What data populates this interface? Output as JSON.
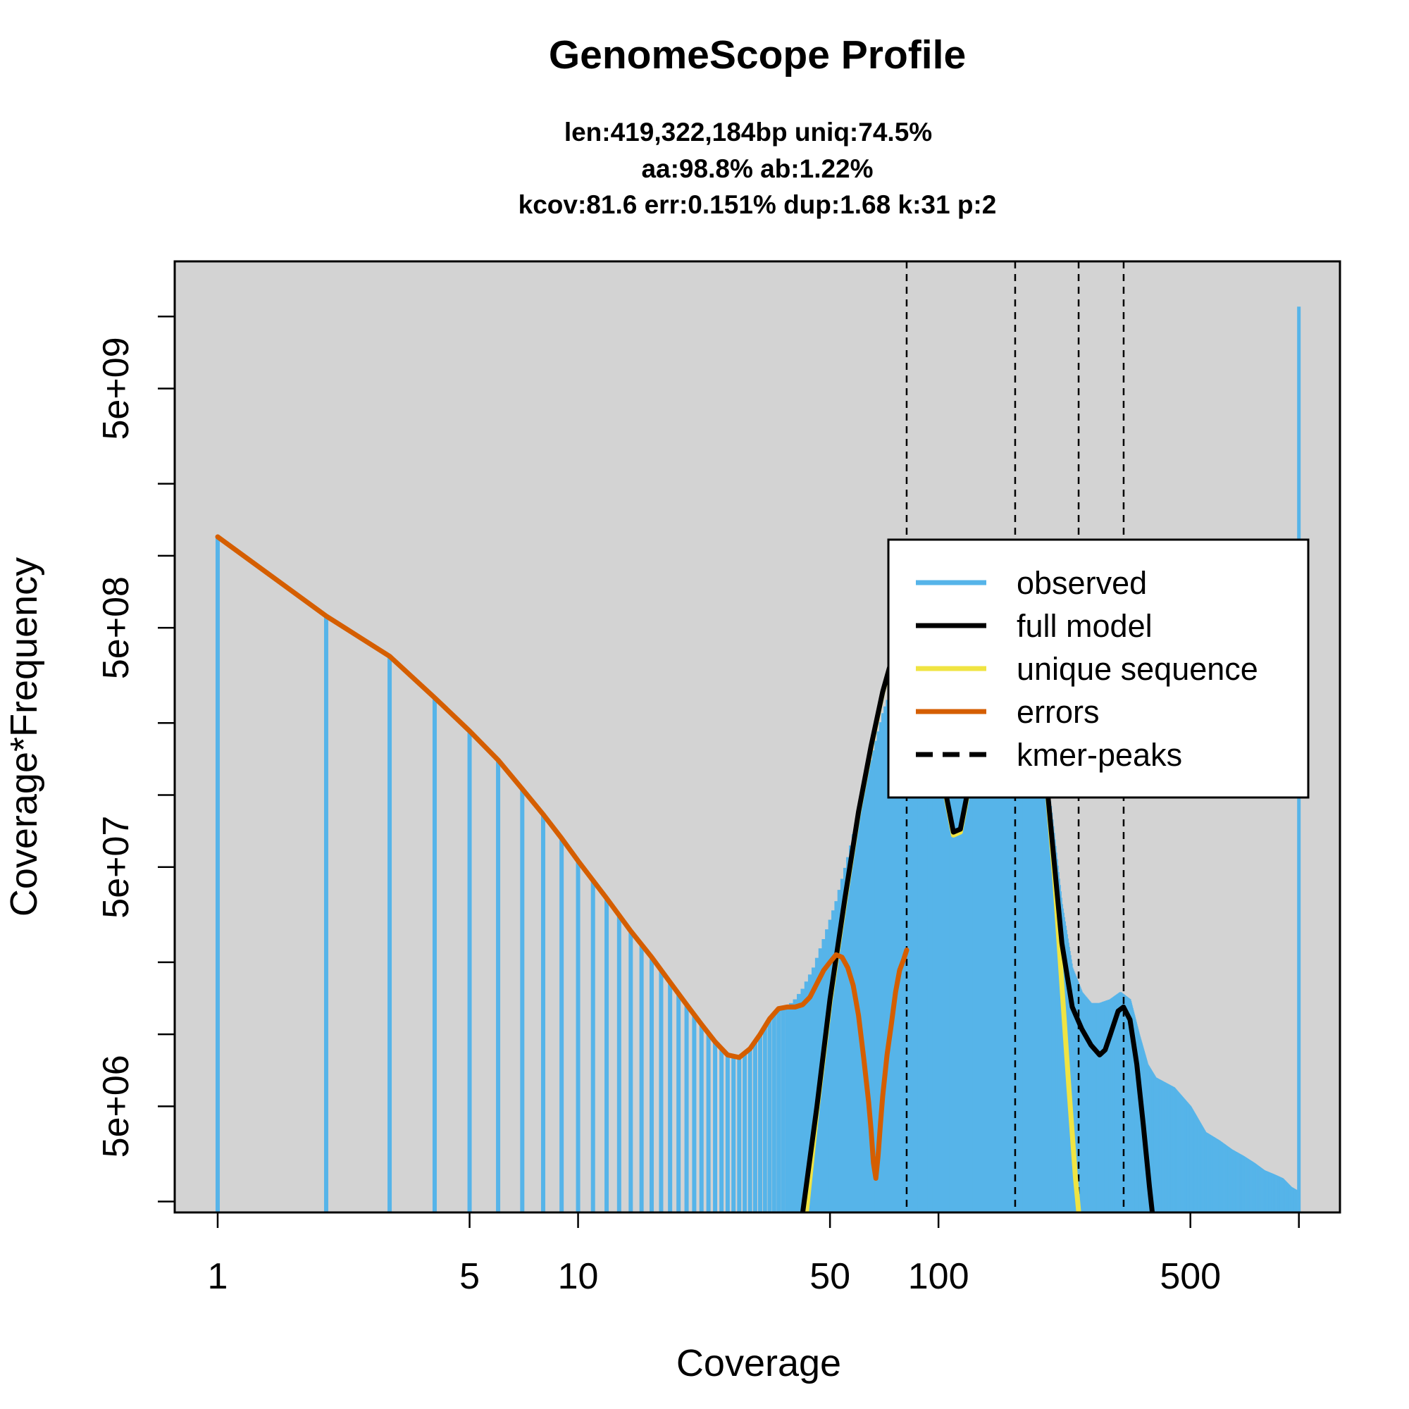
{
  "chart_data": {
    "type": "bar",
    "title": "GenomeScope Profile",
    "subtitle_lines": [
      "len:419,322,184bp uniq:74.5%",
      "aa:98.8% ab:1.22%",
      "kcov:81.6 err:0.151%  dup:1.68  k:31 p:2"
    ],
    "xlabel": "Coverage",
    "ylabel": "Coverage*Frequency",
    "x_scale": "log",
    "y_scale": "log",
    "xlim": [
      0.76,
      1300
    ],
    "ylim": [
      1800000,
      17000000000
    ],
    "x_ticks": [
      1,
      5,
      10,
      50,
      100,
      500
    ],
    "x_tick_labels": [
      "1",
      "5",
      "10",
      "50",
      "100",
      "500"
    ],
    "y_ticks": [
      1000000,
      2000000,
      5000000,
      10000000,
      20000000,
      50000000,
      100000000,
      200000000,
      500000000,
      1000000000,
      2000000000,
      5000000000,
      10000000000
    ],
    "y_tick_labels": [
      "5e+06",
      "5e+07",
      "5e+08",
      "5e+09"
    ],
    "y_labeled_ticks": [
      5000000,
      50000000,
      500000000,
      5000000000
    ],
    "legend_position": "top-right",
    "background": "#d3d3d3",
    "kmer_peaks": [
      81.6,
      163.2,
      244.8,
      326.4
    ],
    "observed_profile": [
      [
        1,
        1200000000
      ],
      [
        2,
        560000000
      ],
      [
        3,
        380000000
      ],
      [
        4,
        255000000
      ],
      [
        5,
        185000000
      ],
      [
        6,
        140000000
      ],
      [
        7,
        106000000
      ],
      [
        8,
        83000000
      ],
      [
        9,
        66000000
      ],
      [
        10,
        53000000
      ],
      [
        12,
        37000000
      ],
      [
        14,
        27000000
      ],
      [
        16,
        21000000
      ],
      [
        18,
        16500000
      ],
      [
        20,
        13300000
      ],
      [
        22,
        11000000
      ],
      [
        24,
        9300000
      ],
      [
        26,
        8200000
      ],
      [
        28,
        8000000
      ],
      [
        30,
        8700000
      ],
      [
        32,
        10000000
      ],
      [
        34,
        11600000
      ],
      [
        36,
        12800000
      ],
      [
        38,
        13000000
      ],
      [
        40,
        14000000
      ],
      [
        42,
        15500000
      ],
      [
        45,
        19000000
      ],
      [
        48,
        25000000
      ],
      [
        52,
        36000000
      ],
      [
        56,
        55000000
      ],
      [
        60,
        85000000
      ],
      [
        65,
        140000000
      ],
      [
        70,
        220000000
      ],
      [
        75,
        300000000
      ],
      [
        80,
        370000000
      ],
      [
        85,
        380000000
      ],
      [
        92,
        300000000
      ],
      [
        100,
        190000000
      ],
      [
        105,
        140000000
      ],
      [
        110,
        120000000
      ],
      [
        115,
        130000000
      ],
      [
        120,
        170000000
      ],
      [
        130,
        230000000
      ],
      [
        145,
        300000000
      ],
      [
        160,
        340000000
      ],
      [
        175,
        290000000
      ],
      [
        190,
        180000000
      ],
      [
        205,
        90000000
      ],
      [
        220,
        35000000
      ],
      [
        235,
        19000000
      ],
      [
        250,
        15000000
      ],
      [
        265,
        13500000
      ],
      [
        280,
        13500000
      ],
      [
        300,
        14000000
      ],
      [
        320,
        15000000
      ],
      [
        340,
        14000000
      ],
      [
        360,
        10000000
      ],
      [
        380,
        7500000
      ],
      [
        400,
        6600000
      ],
      [
        450,
        6000000
      ],
      [
        500,
        5000000
      ],
      [
        550,
        3900000
      ],
      [
        600,
        3600000
      ],
      [
        650,
        3300000
      ],
      [
        700,
        3100000
      ],
      [
        750,
        2900000
      ],
      [
        800,
        2700000
      ],
      [
        850,
        2600000
      ],
      [
        900,
        2500000
      ],
      [
        950,
        2300000
      ],
      [
        1000,
        2200000
      ]
    ],
    "observed_max_bin": [
      1000,
      11000000000
    ],
    "full_model": [
      [
        42,
        1800000
      ],
      [
        46,
        5000000
      ],
      [
        50,
        14000000
      ],
      [
        55,
        37000000
      ],
      [
        60,
        85000000
      ],
      [
        65,
        160000000
      ],
      [
        70,
        270000000
      ],
      [
        75,
        390000000
      ],
      [
        80,
        470000000
      ],
      [
        85,
        460000000
      ],
      [
        90,
        380000000
      ],
      [
        95,
        260000000
      ],
      [
        100,
        160000000
      ],
      [
        105,
        100000000
      ],
      [
        110,
        70000000
      ],
      [
        115,
        72000000
      ],
      [
        120,
        100000000
      ],
      [
        130,
        200000000
      ],
      [
        140,
        320000000
      ],
      [
        150,
        410000000
      ],
      [
        160,
        440000000
      ],
      [
        170,
        420000000
      ],
      [
        180,
        330000000
      ],
      [
        190,
        210000000
      ],
      [
        200,
        110000000
      ],
      [
        210,
        50000000
      ],
      [
        220,
        24000000
      ],
      [
        235,
        13000000
      ],
      [
        250,
        10500000
      ],
      [
        265,
        9000000
      ],
      [
        280,
        8200000
      ],
      [
        290,
        8600000
      ],
      [
        300,
        10000000
      ],
      [
        315,
        12500000
      ],
      [
        326,
        13000000
      ],
      [
        340,
        11500000
      ],
      [
        355,
        7500000
      ],
      [
        370,
        4200000
      ],
      [
        385,
        2300000
      ],
      [
        392,
        1800000
      ]
    ],
    "unique_sequence": [
      [
        43,
        1800000
      ],
      [
        46,
        4800000
      ],
      [
        50,
        13500000
      ],
      [
        55,
        36000000
      ],
      [
        60,
        84000000
      ],
      [
        65,
        158000000
      ],
      [
        70,
        268000000
      ],
      [
        75,
        388000000
      ],
      [
        80,
        468000000
      ],
      [
        85,
        458000000
      ],
      [
        90,
        378000000
      ],
      [
        95,
        258000000
      ],
      [
        100,
        158000000
      ],
      [
        105,
        98000000
      ],
      [
        110,
        68000000
      ],
      [
        115,
        70000000
      ],
      [
        120,
        98000000
      ],
      [
        130,
        198000000
      ],
      [
        140,
        318000000
      ],
      [
        150,
        408000000
      ],
      [
        160,
        438000000
      ],
      [
        170,
        418000000
      ],
      [
        180,
        328000000
      ],
      [
        190,
        208000000
      ],
      [
        200,
        108000000
      ],
      [
        210,
        45000000
      ],
      [
        220,
        16000000
      ],
      [
        230,
        6000000
      ],
      [
        240,
        2500000
      ],
      [
        245,
        1800000
      ]
    ],
    "errors": [
      [
        1,
        1200000000
      ],
      [
        2,
        560000000
      ],
      [
        3,
        380000000
      ],
      [
        4,
        255000000
      ],
      [
        5,
        185000000
      ],
      [
        6,
        140000000
      ],
      [
        7,
        106000000
      ],
      [
        8,
        83000000
      ],
      [
        9,
        66000000
      ],
      [
        10,
        53000000
      ],
      [
        12,
        37000000
      ],
      [
        14,
        27000000
      ],
      [
        16,
        21000000
      ],
      [
        18,
        16500000
      ],
      [
        20,
        13300000
      ],
      [
        22,
        11000000
      ],
      [
        24,
        9300000
      ],
      [
        26,
        8200000
      ],
      [
        28,
        8000000
      ],
      [
        30,
        8700000
      ],
      [
        32,
        10000000
      ],
      [
        34,
        11600000
      ],
      [
        36,
        12800000
      ],
      [
        38,
        13000000
      ],
      [
        40,
        13000000
      ],
      [
        42,
        13300000
      ],
      [
        44,
        14300000
      ],
      [
        46,
        16300000
      ],
      [
        48,
        18500000
      ],
      [
        50,
        20000000
      ],
      [
        52,
        21500000
      ],
      [
        54,
        21000000
      ],
      [
        56,
        19000000
      ],
      [
        58,
        16000000
      ],
      [
        60,
        12000000
      ],
      [
        62,
        8000000
      ],
      [
        64,
        5200000
      ],
      [
        65,
        4000000
      ],
      [
        66,
        2900000
      ],
      [
        67,
        2500000
      ],
      [
        68,
        3100000
      ],
      [
        69,
        4200000
      ],
      [
        70,
        5500000
      ],
      [
        72,
        8200000
      ],
      [
        74,
        11000000
      ],
      [
        76,
        15000000
      ],
      [
        78,
        18500000
      ],
      [
        80,
        20500000
      ],
      [
        81.6,
        22500000
      ]
    ]
  },
  "legend": {
    "items": [
      {
        "label": "observed",
        "color": "#56b4e9",
        "dash": false
      },
      {
        "label": "full model",
        "color": "#000000",
        "dash": false
      },
      {
        "label": "unique sequence",
        "color": "#f0e442",
        "dash": false
      },
      {
        "label": "errors",
        "color": "#d55e00",
        "dash": false
      },
      {
        "label": "kmer-peaks",
        "color": "#000000",
        "dash": true
      }
    ]
  },
  "colors": {
    "observed": "#56b4e9",
    "full_model": "#000000",
    "unique_sequence": "#f0e442",
    "errors": "#d55e00",
    "plot_background": "#d3d3d3"
  }
}
